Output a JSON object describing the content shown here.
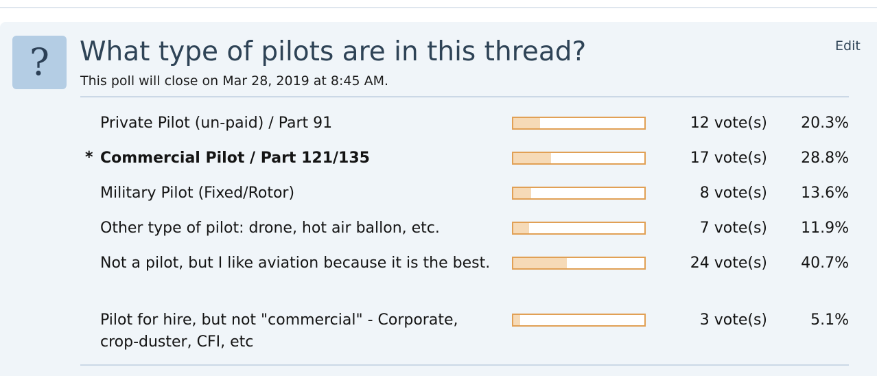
{
  "poll": {
    "icon": "question-mark-icon",
    "icon_glyph": "?",
    "title": "What type of pilots are in this thread?",
    "subtitle": "This poll will close on Mar 28, 2019 at 8:45 AM.",
    "edit_label": "Edit",
    "accent_color": "#e1a055",
    "fill_color": "#f6dab7",
    "options": [
      {
        "marker": "",
        "label": "Private Pilot (un-paid) / Part 91",
        "votes": "12 vote(s)",
        "percent": "20.3%",
        "share": 0.203,
        "voted": false
      },
      {
        "marker": "*",
        "label": "Commercial Pilot / Part 121/135",
        "votes": "17 vote(s)",
        "percent": "28.8%",
        "share": 0.288,
        "voted": true
      },
      {
        "marker": "",
        "label": "Military Pilot (Fixed/Rotor)",
        "votes": "8 vote(s)",
        "percent": "13.6%",
        "share": 0.136,
        "voted": false
      },
      {
        "marker": "",
        "label": "Other type of pilot: drone, hot air ballon, etc.",
        "votes": "7 vote(s)",
        "percent": "11.9%",
        "share": 0.119,
        "voted": false
      },
      {
        "marker": "",
        "label": "Not a pilot, but I like aviation because it is the best.",
        "votes": "24 vote(s)",
        "percent": "40.7%",
        "share": 0.407,
        "voted": false
      },
      {
        "marker": "",
        "label": "Pilot for hire, but not \"commercial\" - Corporate, crop-duster, CFI, etc",
        "votes": "3 vote(s)",
        "percent": "5.1%",
        "share": 0.051,
        "voted": false
      }
    ]
  }
}
